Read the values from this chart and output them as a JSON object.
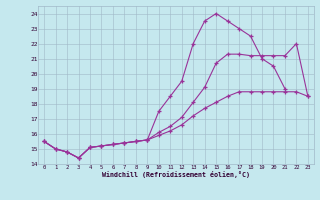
{
  "xlabel": "Windchill (Refroidissement éolien,°C)",
  "bg_color": "#c5e8ee",
  "grid_color": "#a0b8c8",
  "line_color": "#993399",
  "xlim": [
    -0.5,
    23.5
  ],
  "ylim": [
    14,
    24.5
  ],
  "xticks": [
    0,
    1,
    2,
    3,
    4,
    5,
    6,
    7,
    8,
    9,
    10,
    11,
    12,
    13,
    14,
    15,
    16,
    17,
    18,
    19,
    20,
    21,
    22,
    23
  ],
  "yticks": [
    14,
    15,
    16,
    17,
    18,
    19,
    20,
    21,
    22,
    23,
    24
  ],
  "line1_x": [
    0,
    1,
    2,
    3,
    4,
    5,
    6,
    7,
    8,
    9,
    10,
    11,
    12,
    13,
    14,
    15,
    16,
    17,
    18,
    19,
    20,
    21
  ],
  "line1_y": [
    15.5,
    15.0,
    14.8,
    14.4,
    15.1,
    15.2,
    15.3,
    15.4,
    15.5,
    15.6,
    17.5,
    18.5,
    19.5,
    22.0,
    23.5,
    24.0,
    23.5,
    23.0,
    22.5,
    21.0,
    20.5,
    19.0
  ],
  "line2_x": [
    0,
    1,
    2,
    3,
    4,
    5,
    6,
    7,
    8,
    9,
    10,
    11,
    12,
    13,
    14,
    15,
    16,
    17,
    18,
    19,
    20,
    21,
    22,
    23
  ],
  "line2_y": [
    15.5,
    15.0,
    14.8,
    14.4,
    15.1,
    15.2,
    15.3,
    15.4,
    15.5,
    15.6,
    16.1,
    16.5,
    17.1,
    18.1,
    19.1,
    20.7,
    21.3,
    21.3,
    21.2,
    21.2,
    21.2,
    21.2,
    22.0,
    18.5
  ],
  "line3_x": [
    0,
    1,
    2,
    3,
    4,
    5,
    6,
    7,
    8,
    9,
    10,
    11,
    12,
    13,
    14,
    15,
    16,
    17,
    18,
    19,
    20,
    21,
    22,
    23
  ],
  "line3_y": [
    15.5,
    15.0,
    14.8,
    14.4,
    15.1,
    15.2,
    15.3,
    15.4,
    15.5,
    15.6,
    15.9,
    16.2,
    16.6,
    17.2,
    17.7,
    18.1,
    18.5,
    18.8,
    18.8,
    18.8,
    18.8,
    18.8,
    18.8,
    18.5
  ]
}
